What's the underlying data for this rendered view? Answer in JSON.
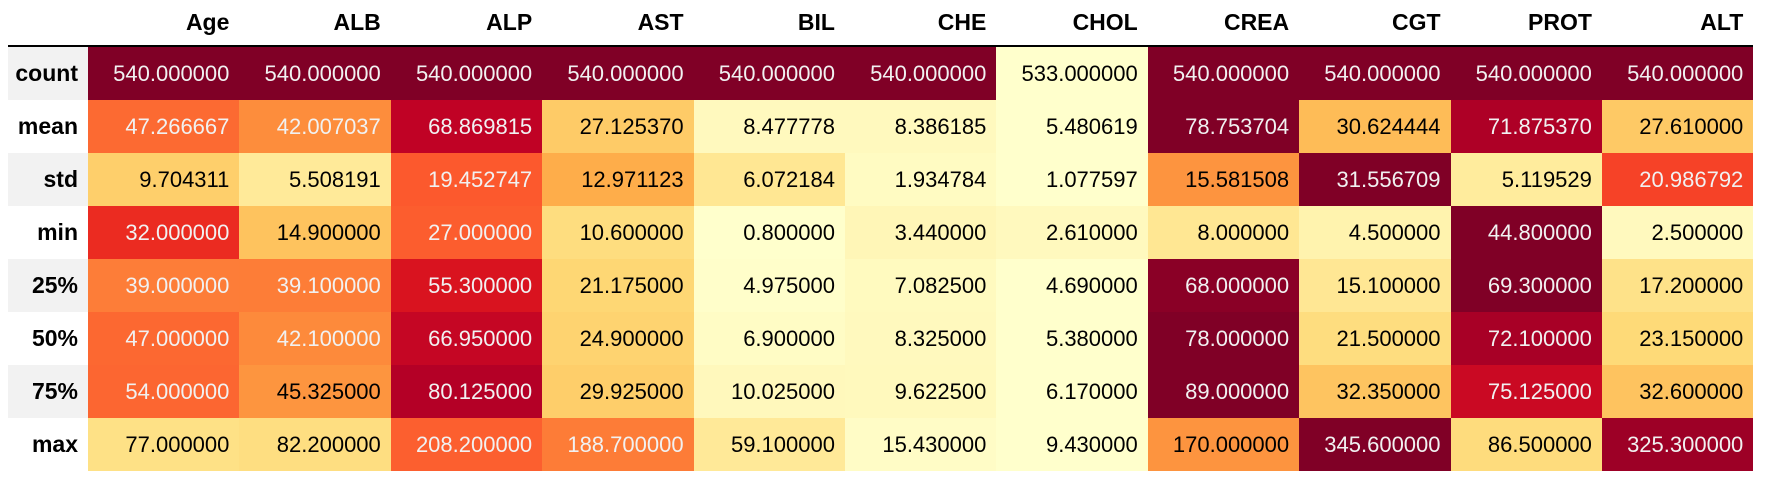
{
  "chart_data": {
    "type": "table",
    "colormap": "YlOrRd",
    "colormap_stops": [
      "#ffffcc",
      "#ffeda0",
      "#fed976",
      "#feb24c",
      "#fd8d3c",
      "#fc4e2a",
      "#e31a1c",
      "#bd0026",
      "#800026"
    ],
    "columns": [
      "Age",
      "ALB",
      "ALP",
      "AST",
      "BIL",
      "CHE",
      "CHOL",
      "CREA",
      "CGT",
      "PROT",
      "ALT"
    ],
    "rows": [
      {
        "label": "count",
        "values": [
          "540.000000",
          "540.000000",
          "540.000000",
          "540.000000",
          "540.000000",
          "540.000000",
          "533.000000",
          "540.000000",
          "540.000000",
          "540.000000",
          "540.000000"
        ]
      },
      {
        "label": "mean",
        "values": [
          "47.266667",
          "42.007037",
          "68.869815",
          "27.125370",
          "8.477778",
          "8.386185",
          "5.480619",
          "78.753704",
          "30.624444",
          "71.875370",
          "27.610000"
        ]
      },
      {
        "label": "std",
        "values": [
          "9.704311",
          "5.508191",
          "19.452747",
          "12.971123",
          "6.072184",
          "1.934784",
          "1.077597",
          "15.581508",
          "31.556709",
          "5.119529",
          "20.986792"
        ]
      },
      {
        "label": "min",
        "values": [
          "32.000000",
          "14.900000",
          "27.000000",
          "10.600000",
          "0.800000",
          "3.440000",
          "2.610000",
          "8.000000",
          "4.500000",
          "44.800000",
          "2.500000"
        ]
      },
      {
        "label": "25%",
        "values": [
          "39.000000",
          "39.100000",
          "55.300000",
          "21.175000",
          "4.975000",
          "7.082500",
          "4.690000",
          "68.000000",
          "15.100000",
          "69.300000",
          "17.200000"
        ]
      },
      {
        "label": "50%",
        "values": [
          "47.000000",
          "42.100000",
          "66.950000",
          "24.900000",
          "6.900000",
          "8.325000",
          "5.380000",
          "78.000000",
          "21.500000",
          "72.100000",
          "23.150000"
        ]
      },
      {
        "label": "75%",
        "values": [
          "54.000000",
          "45.325000",
          "80.125000",
          "29.925000",
          "10.025000",
          "9.622500",
          "6.170000",
          "89.000000",
          "32.350000",
          "75.125000",
          "32.600000"
        ]
      },
      {
        "label": "max",
        "values": [
          "77.000000",
          "82.200000",
          "208.200000",
          "188.700000",
          "59.100000",
          "15.430000",
          "9.430000",
          "170.000000",
          "345.600000",
          "86.500000",
          "325.300000"
        ]
      }
    ]
  }
}
